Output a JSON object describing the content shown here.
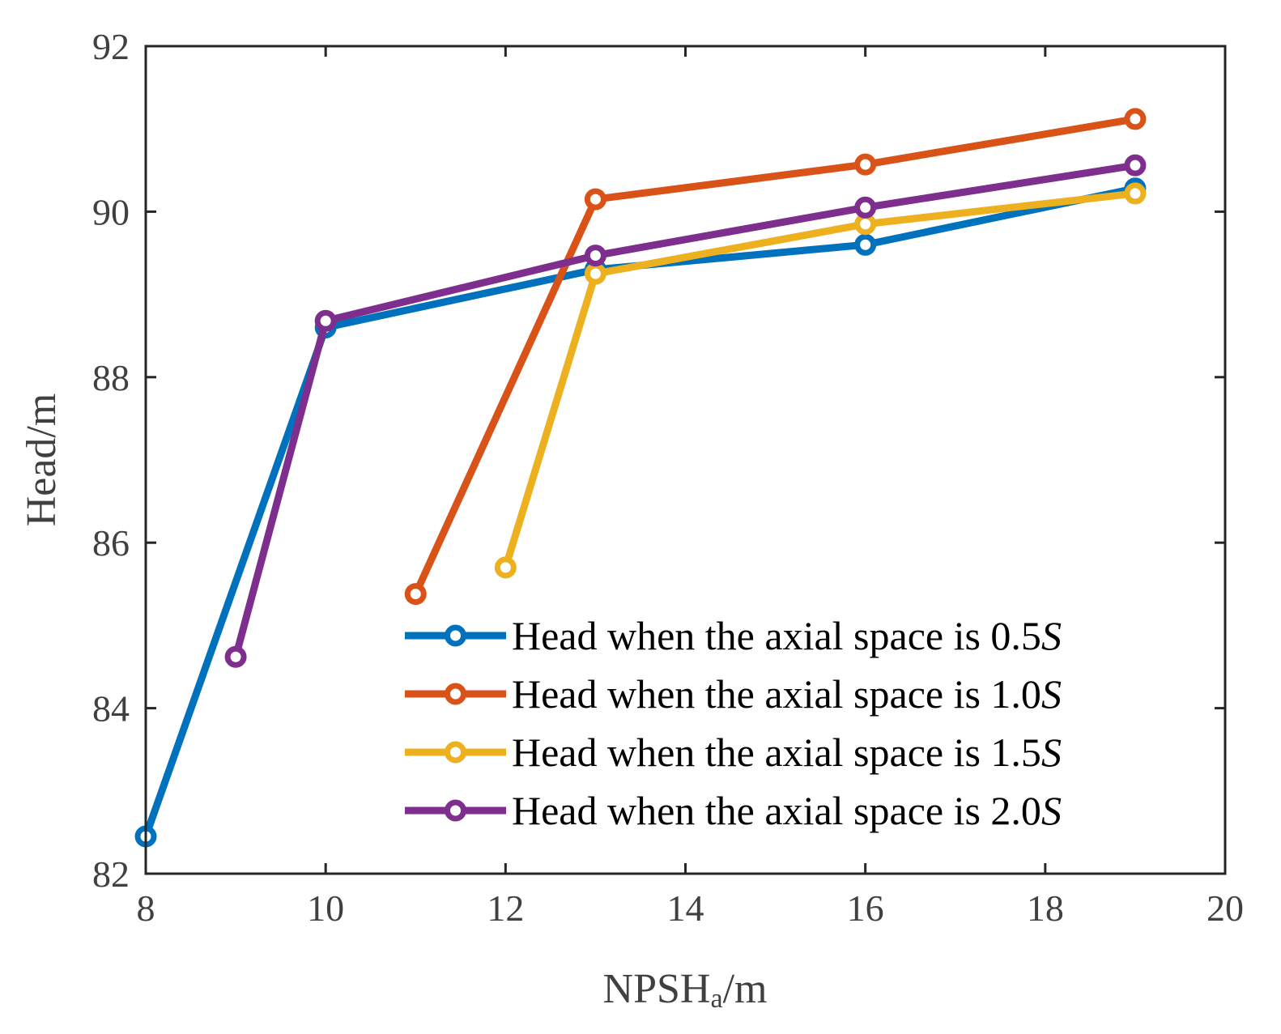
{
  "chart_data": {
    "type": "line",
    "title": "",
    "xlabel": "NPSHa/m",
    "xlabel_parts": {
      "main": "NPSH",
      "sub": "a",
      "rest": "/m"
    },
    "ylabel": "Head/m",
    "xlim": [
      8,
      20
    ],
    "ylim": [
      82,
      92
    ],
    "xticks": [
      8,
      10,
      12,
      14,
      16,
      18,
      20
    ],
    "yticks": [
      82,
      84,
      86,
      88,
      90,
      92
    ],
    "grid": false,
    "legend_position": "bottom-right",
    "marker": "circle",
    "series": [
      {
        "name": "Head when the axial space is 0.5S",
        "label_prefix": "Head when the axial space is 0.5",
        "label_italic": "S",
        "color": "#0072BD",
        "x": [
          8,
          10,
          13,
          16,
          19
        ],
        "y": [
          82.45,
          88.6,
          89.3,
          89.6,
          90.28
        ]
      },
      {
        "name": "Head when the axial space is 1.0S",
        "label_prefix": "Head when the axial space is 1.0",
        "label_italic": "S",
        "color": "#D95319",
        "x": [
          11,
          13,
          16,
          19
        ],
        "y": [
          85.38,
          90.15,
          90.57,
          91.12
        ]
      },
      {
        "name": "Head when the axial space is 1.5S",
        "label_prefix": "Head when the axial space is 1.5",
        "label_italic": "S",
        "color": "#EDB120",
        "x": [
          12,
          13,
          16,
          19
        ],
        "y": [
          85.7,
          89.25,
          89.85,
          90.22
        ]
      },
      {
        "name": "Head when the axial space is 2.0S",
        "label_prefix": "Head when the axial space is 2.0",
        "label_italic": "S",
        "color": "#7E2F8E",
        "x": [
          9,
          10,
          13,
          16,
          19
        ],
        "y": [
          84.62,
          88.68,
          89.47,
          90.05,
          90.56
        ]
      }
    ]
  }
}
